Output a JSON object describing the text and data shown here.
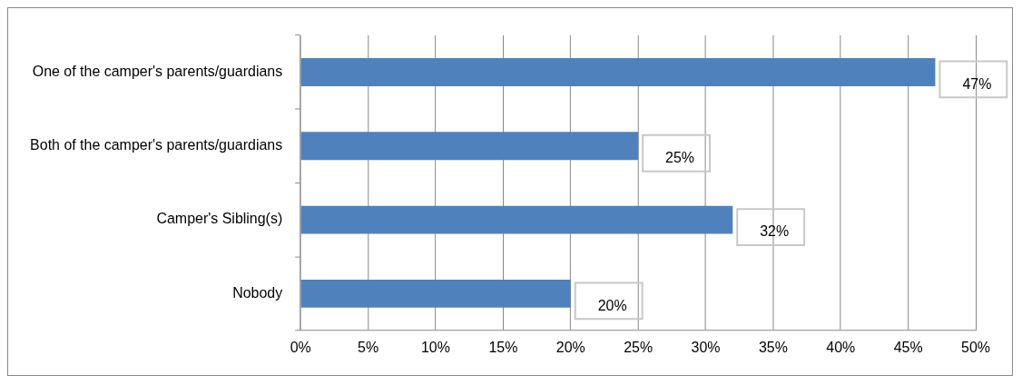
{
  "chart_data": {
    "type": "bar",
    "orientation": "horizontal",
    "categories": [
      "One of the camper's parents/guardians",
      "Both of the camper's parents/guardians",
      "Camper's Sibling(s)",
      "Nobody"
    ],
    "values": [
      47,
      25,
      32,
      20
    ],
    "color": "#4f81bd",
    "value_labels": [
      "47%",
      "25%",
      "32%",
      "20%"
    ],
    "xlim": [
      0,
      50
    ],
    "xticks": [
      {
        "value": 0,
        "label": "0%"
      },
      {
        "value": 5,
        "label": "5%"
      },
      {
        "value": 10,
        "label": "10%"
      },
      {
        "value": 15,
        "label": "15%"
      },
      {
        "value": 20,
        "label": "20%"
      },
      {
        "value": 25,
        "label": "25%"
      },
      {
        "value": 30,
        "label": "30%"
      },
      {
        "value": 35,
        "label": "35%"
      },
      {
        "value": 40,
        "label": "40%"
      },
      {
        "value": 45,
        "label": "45%"
      },
      {
        "value": 50,
        "label": "50%"
      }
    ],
    "grid": "x",
    "legend": false
  }
}
